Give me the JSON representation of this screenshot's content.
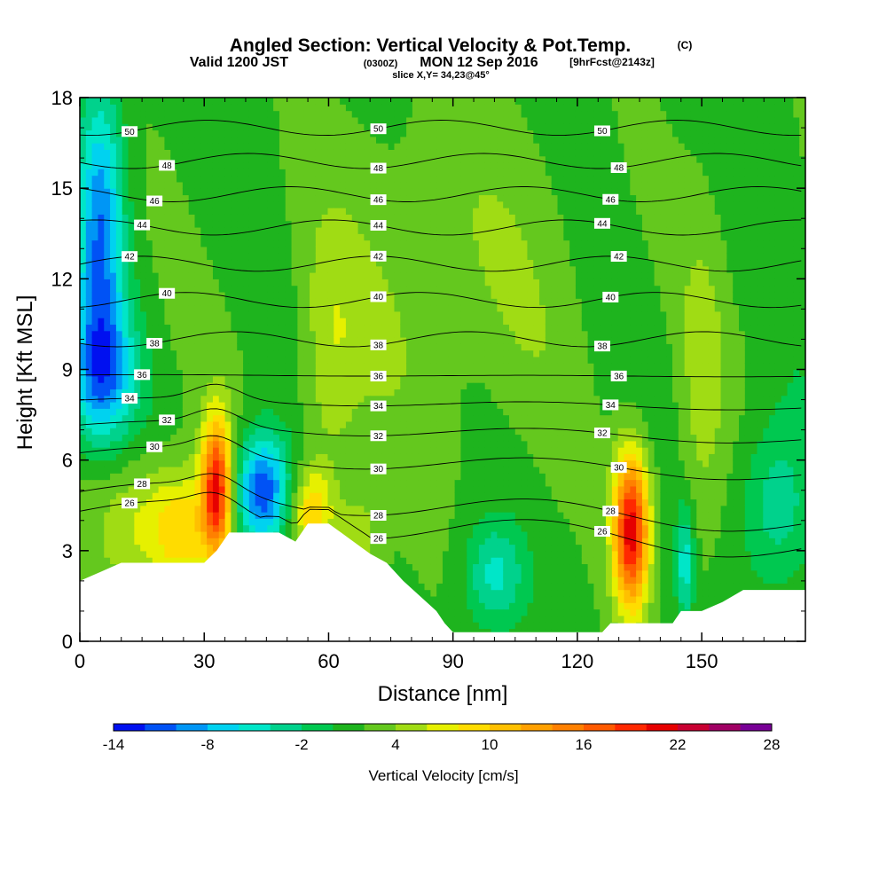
{
  "title": {
    "main": "Angled Section: Vertical Velocity & Pot.Temp.",
    "main_unit": "(C)",
    "valid_prefix": "Valid 1200 JST",
    "valid_utc": "(0300Z)",
    "valid_date": "MON 12 Sep 2016",
    "forecast": "[9hrFcst@2143z]",
    "slice": "slice X,Y= 34,23@45°"
  },
  "chart_data": {
    "type": "heatmap",
    "xlabel": "Distance [nm]",
    "ylabel": "Height [Kft MSL]",
    "xlim": [
      0,
      175
    ],
    "ylim": [
      0,
      18
    ],
    "x_ticks": [
      "0",
      "30",
      "60",
      "90",
      "120",
      "150"
    ],
    "y_ticks": [
      "0",
      "3",
      "6",
      "9",
      "12",
      "15",
      "18"
    ],
    "colorbar": {
      "label": "Vertical Velocity [cm/s]",
      "ticks": [
        "-14",
        "-8",
        "-2",
        "4",
        "10",
        "16",
        "22",
        "28"
      ],
      "levels": [
        -14,
        -12,
        -10,
        -8,
        -6,
        -4,
        -2,
        0,
        2,
        4,
        6,
        8,
        10,
        12,
        14,
        16,
        18,
        20,
        22,
        24,
        26,
        28
      ],
      "colors": [
        "#0010f0",
        "#0052f5",
        "#0096f5",
        "#00d2f0",
        "#00e6c8",
        "#00d28c",
        "#00c850",
        "#1eb41e",
        "#64c81e",
        "#a0dc14",
        "#e6f000",
        "#ffdc00",
        "#ffc000",
        "#ffa000",
        "#ff8000",
        "#ff5a00",
        "#ff2800",
        "#e60000",
        "#c80032",
        "#a00064",
        "#780096"
      ]
    },
    "terrain_kft": [
      [
        0,
        2
      ],
      [
        5,
        2.3
      ],
      [
        10,
        2.6
      ],
      [
        30,
        2.6
      ],
      [
        33,
        3.0
      ],
      [
        36,
        3.6
      ],
      [
        48,
        3.6
      ],
      [
        52,
        3.3
      ],
      [
        55,
        3.9
      ],
      [
        60,
        3.9
      ],
      [
        63,
        3.6
      ],
      [
        66,
        3.3
      ],
      [
        70,
        2.9
      ],
      [
        74,
        2.6
      ],
      [
        78,
        2.0
      ],
      [
        82,
        1.5
      ],
      [
        86,
        1.0
      ],
      [
        88,
        0.6
      ],
      [
        90,
        0.3
      ],
      [
        126,
        0.3
      ],
      [
        128,
        0.6
      ],
      [
        143,
        0.6
      ],
      [
        145,
        1.0
      ],
      [
        150,
        1.0
      ],
      [
        155,
        1.3
      ],
      [
        160,
        1.7
      ],
      [
        175,
        1.7
      ]
    ],
    "theta_contours": [
      {
        "label": "26",
        "base_kft": 3.9
      },
      {
        "label": "28",
        "base_kft": 4.6
      },
      {
        "label": "30",
        "base_kft": 6.0
      },
      {
        "label": "32",
        "base_kft": 7.0
      },
      {
        "label": "34",
        "base_kft": 7.9
      },
      {
        "label": "36",
        "base_kft": 8.8
      },
      {
        "label": "38",
        "base_kft": 10.0
      },
      {
        "label": "40",
        "base_kft": 11.3
      },
      {
        "label": "42",
        "base_kft": 12.5
      },
      {
        "label": "44",
        "base_kft": 13.7
      },
      {
        "label": "46",
        "base_kft": 14.8
      },
      {
        "label": "48",
        "base_kft": 15.9
      },
      {
        "label": "50",
        "base_kft": 17.0
      }
    ],
    "features": [
      {
        "name": "strong updraft",
        "x_nm": 33,
        "z_kft": 5.1,
        "max_cms": 20
      },
      {
        "name": "downdraft",
        "x_nm": 44,
        "z_kft": 5.0,
        "min_cms": -12
      },
      {
        "name": "updraft",
        "x_nm": 133,
        "z_kft": 3.7,
        "max_cms": 20
      },
      {
        "name": "upper downdraft",
        "x_nm": 5,
        "z_kft": 14.5,
        "min_cms": -10
      }
    ]
  }
}
